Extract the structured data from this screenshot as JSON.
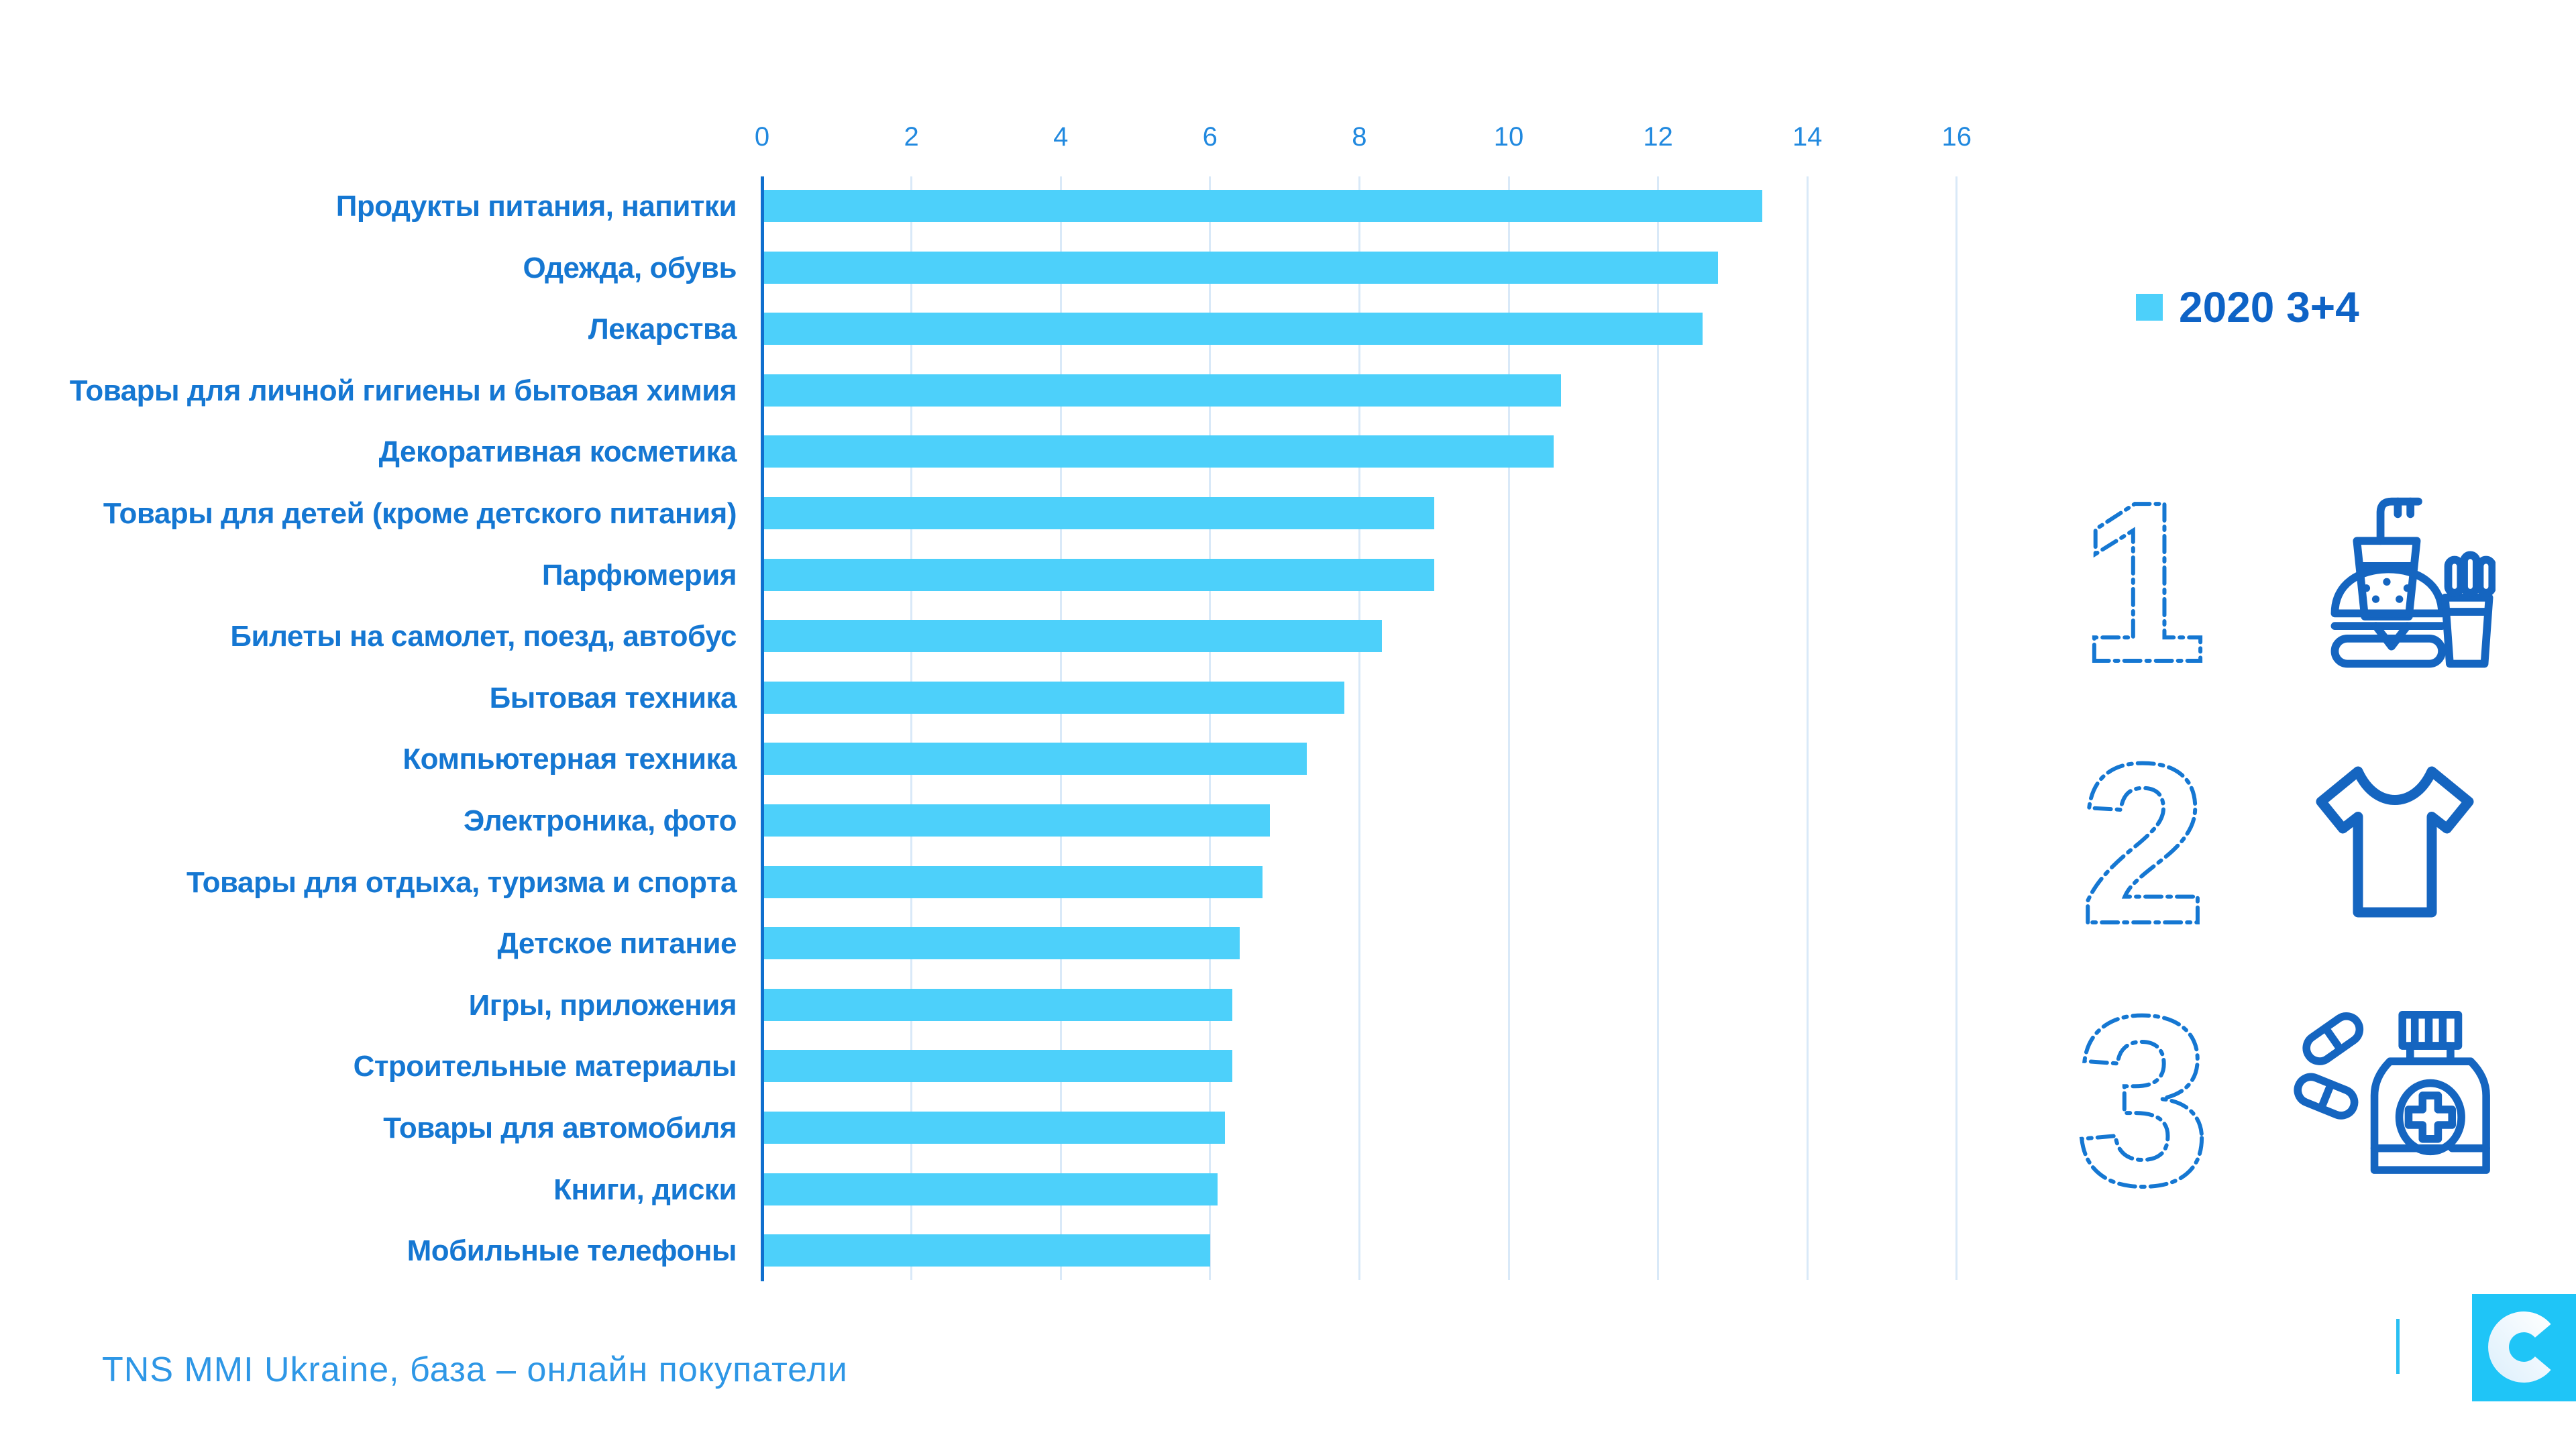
{
  "chart_data": {
    "type": "bar",
    "orientation": "horizontal",
    "title": "",
    "categories": [
      "Продукты питания, напитки",
      "Одежда, обувь",
      "Лекарства",
      "Товары для личной гигиены и бытовая химия",
      "Декоративная косметика",
      "Товары для детей (кроме детского питания)",
      "Парфюмерия",
      "Билеты на самолет, поезд, автобус",
      "Бытовая техника",
      "Компьютерная техника",
      "Электроника, фото",
      "Товары для отдыха, туризма и спорта",
      "Детское питание",
      "Игры, приложения",
      "Строительные материалы",
      "Товары для автомобиля",
      "Книги, диски",
      "Мобильные телефоны"
    ],
    "series": [
      {
        "name": "2020 3+4",
        "values": [
          13.4,
          12.8,
          12.6,
          10.7,
          10.6,
          9.0,
          9.0,
          8.3,
          7.8,
          7.3,
          6.8,
          6.7,
          6.4,
          6.3,
          6.3,
          6.2,
          6.1,
          6.0
        ]
      }
    ],
    "xlim": [
      0,
      16
    ],
    "xticks": [
      0,
      2,
      4,
      6,
      8,
      10,
      12,
      14,
      16
    ],
    "grid": true,
    "legend_position": "right"
  },
  "legend": {
    "label": "2020 3+4"
  },
  "rankings": [
    {
      "rank": "1",
      "icon": "fast-food-icon"
    },
    {
      "rank": "2",
      "icon": "tshirt-icon"
    },
    {
      "rank": "3",
      "icon": "medicine-bottle-icon"
    }
  ],
  "footer": {
    "source": "TNS MMI Ukraine, база – онлайн покупатели"
  },
  "logo": {
    "glyph": "C"
  },
  "colors": {
    "bar": "#4DD0FA",
    "grid": "#D9E9F8",
    "axis": "#0F6FCE",
    "category_label": "#1577D2",
    "tick_label": "#2189DF",
    "legend_text": "#0E63C6",
    "icon": "#1565C0",
    "footer_text": "#2E97E6",
    "logo_bg": "#1FC5F7",
    "divider": "#29BFF2"
  }
}
